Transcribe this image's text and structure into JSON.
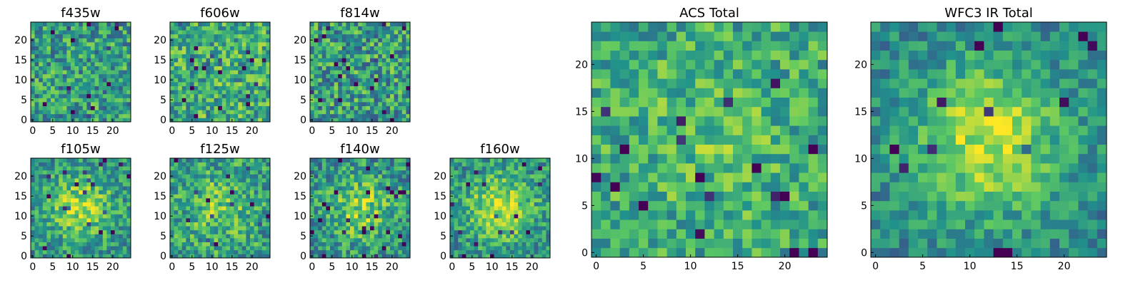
{
  "figure": {
    "background": "#ffffff",
    "colormap": "viridis",
    "colormap_colors": [
      "#440154",
      "#3b528b",
      "#21918c",
      "#5ec962",
      "#fde725"
    ]
  },
  "chart_data": [
    {
      "type": "heatmap",
      "title": "f435w",
      "grid_size": 25,
      "xlim": [
        0,
        24
      ],
      "ylim": [
        0,
        24
      ],
      "xticks": [
        "0",
        "5",
        "10",
        "15",
        "20"
      ],
      "yticks": [
        "0",
        "5",
        "10",
        "15",
        "20"
      ],
      "values_note": "pixel noise with no visible structure"
    },
    {
      "type": "heatmap",
      "title": "f606w",
      "grid_size": 25,
      "xlim": [
        0,
        24
      ],
      "ylim": [
        0,
        24
      ],
      "xticks": [
        "0",
        "5",
        "10",
        "15",
        "20"
      ],
      "yticks": [
        "0",
        "5",
        "10",
        "15",
        "20"
      ]
    },
    {
      "type": "heatmap",
      "title": "f814w",
      "grid_size": 25,
      "xlim": [
        0,
        24
      ],
      "ylim": [
        0,
        24
      ],
      "xticks": [
        "0",
        "5",
        "10",
        "15",
        "20"
      ],
      "yticks": [
        "0",
        "5",
        "10",
        "15",
        "20"
      ]
    },
    {
      "type": "heatmap",
      "title": "f105w",
      "grid_size": 25,
      "xlim": [
        0,
        24
      ],
      "ylim": [
        0,
        24
      ],
      "xticks": [
        "0",
        "5",
        "10",
        "15",
        "20"
      ],
      "yticks": [
        "0",
        "5",
        "10",
        "15",
        "20"
      ]
    },
    {
      "type": "heatmap",
      "title": "f125w",
      "grid_size": 25,
      "xlim": [
        0,
        24
      ],
      "ylim": [
        0,
        24
      ],
      "xticks": [
        "0",
        "5",
        "10",
        "15",
        "20"
      ],
      "yticks": [
        "0",
        "5",
        "10",
        "15",
        "20"
      ]
    },
    {
      "type": "heatmap",
      "title": "f140w",
      "grid_size": 25,
      "xlim": [
        0,
        24
      ],
      "ylim": [
        0,
        24
      ],
      "xticks": [
        "0",
        "5",
        "10",
        "15",
        "20"
      ],
      "yticks": [
        "0",
        "5",
        "10",
        "15",
        "20"
      ]
    },
    {
      "type": "heatmap",
      "title": "f160w",
      "grid_size": 25,
      "xlim": [
        0,
        24
      ],
      "ylim": [
        0,
        24
      ],
      "xticks": [
        "0",
        "5",
        "10",
        "15",
        "20"
      ],
      "yticks": [
        "0",
        "5",
        "10",
        "15",
        "20"
      ]
    },
    {
      "type": "heatmap",
      "title": "ACS Total",
      "grid_size": 25,
      "xlim": [
        0,
        24
      ],
      "ylim": [
        0,
        24
      ],
      "xticks": [
        "0",
        "5",
        "10",
        "15",
        "20"
      ],
      "yticks": [
        "0",
        "5",
        "10",
        "15",
        "20"
      ]
    },
    {
      "type": "heatmap",
      "title": "WFC3 IR Total",
      "grid_size": 25,
      "xlim": [
        0,
        24
      ],
      "ylim": [
        0,
        24
      ],
      "xticks": [
        "0",
        "5",
        "10",
        "15",
        "20"
      ],
      "yticks": [
        "0",
        "5",
        "10",
        "15",
        "20"
      ]
    }
  ]
}
